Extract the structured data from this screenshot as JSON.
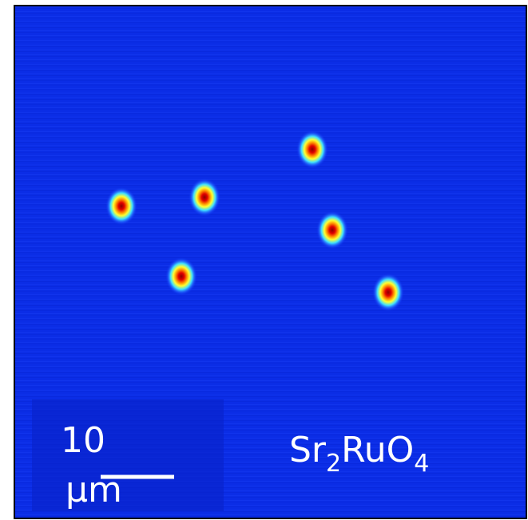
{
  "scale_bar": {
    "value": "10",
    "unit": "μm"
  },
  "material": {
    "parts": [
      {
        "text": "Sr"
      },
      {
        "text": "2",
        "sub": true
      },
      {
        "text": "Ru"
      },
      {
        "text": "O"
      },
      {
        "text": "4",
        "sub": true
      }
    ]
  }
}
